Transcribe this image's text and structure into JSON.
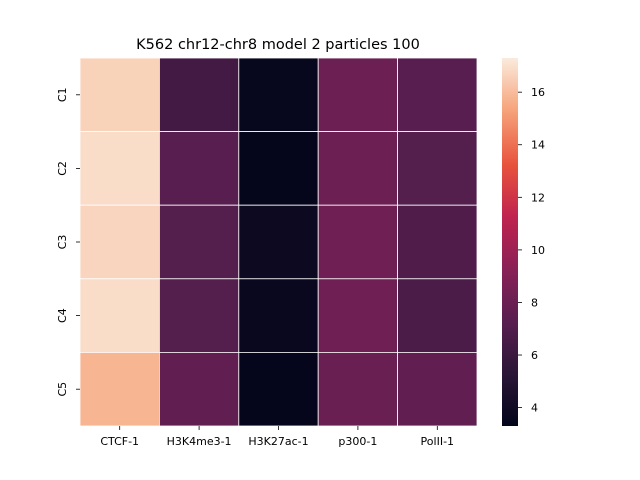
{
  "chart_data": {
    "type": "heatmap",
    "title": "K562 chr12-chr8 model 2 particles 100",
    "xlabel": "",
    "ylabel": "",
    "columns": [
      "CTCF-1",
      "H3K4me3-1",
      "H3K27ac-1",
      "p300-1",
      "PolII-1"
    ],
    "rows": [
      "C1",
      "C2",
      "C3",
      "C4",
      "C5"
    ],
    "values": [
      [
        16.6,
        6.3,
        3.5,
        8.1,
        7.2
      ],
      [
        16.9,
        7.2,
        3.4,
        8.1,
        7.1
      ],
      [
        16.7,
        7.1,
        3.8,
        8.2,
        6.9
      ],
      [
        16.9,
        7.1,
        3.6,
        8.2,
        6.7
      ],
      [
        15.8,
        7.6,
        3.4,
        8.0,
        7.6
      ]
    ],
    "colorbar": {
      "min": 3.3,
      "max": 17.3,
      "ticks": [
        4,
        6,
        8,
        10,
        12,
        14,
        16
      ],
      "colormap": "rocket",
      "stops": [
        [
          0.0,
          "#03051a"
        ],
        [
          0.14,
          "#2a1636"
        ],
        [
          0.28,
          "#571e4f"
        ],
        [
          0.43,
          "#8a2157"
        ],
        [
          0.57,
          "#c0234f"
        ],
        [
          0.71,
          "#e8533c"
        ],
        [
          0.86,
          "#f6a47b"
        ],
        [
          1.0,
          "#faebdd"
        ]
      ]
    },
    "grid": false,
    "cell_border_color": "#ffffff"
  }
}
